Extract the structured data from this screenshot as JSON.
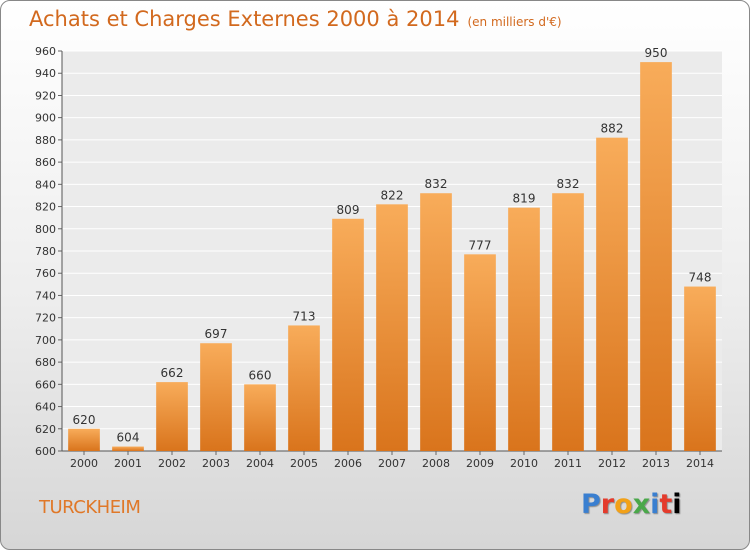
{
  "title": "Achats et Charges Externes 2000 à 2014",
  "title_unit": "(en milliers d'€)",
  "commune": "TURCKHEIM",
  "logo": [
    "P",
    "r",
    "o",
    "x",
    "i",
    "t",
    "i"
  ],
  "colors": {
    "bar_light": "#f8ac5a",
    "bar_dark": "#d9741c",
    "title": "#d2691e"
  },
  "chart_data": {
    "type": "bar",
    "title": "Achats et Charges Externes 2000 à 2014",
    "categories": [
      "2000",
      "2001",
      "2002",
      "2003",
      "2004",
      "2005",
      "2006",
      "2007",
      "2008",
      "2009",
      "2010",
      "2011",
      "2012",
      "2013",
      "2014"
    ],
    "values": [
      620,
      604,
      662,
      697,
      660,
      713,
      809,
      822,
      832,
      777,
      819,
      832,
      882,
      950,
      748
    ],
    "ylim": [
      600,
      960
    ],
    "yticks": [
      600,
      620,
      640,
      660,
      680,
      700,
      720,
      740,
      760,
      780,
      800,
      820,
      840,
      860,
      880,
      900,
      920,
      940,
      960
    ],
    "grid": true,
    "legend": "none"
  }
}
